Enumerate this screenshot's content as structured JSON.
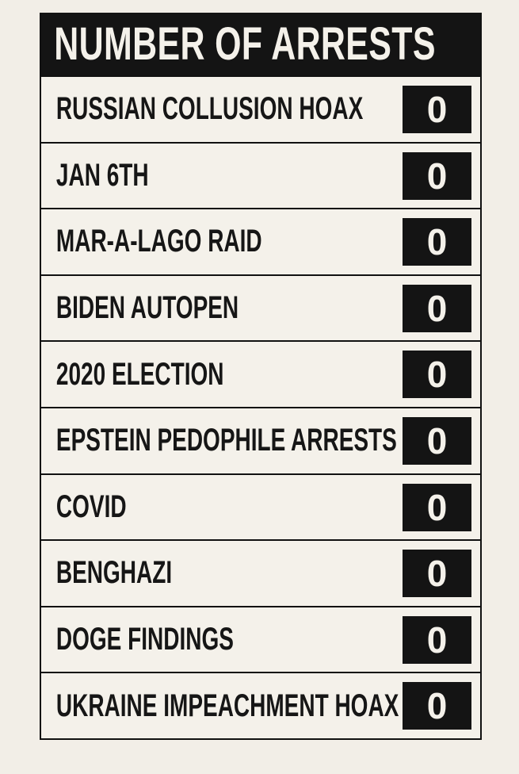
{
  "header": {
    "title": "NUMBER OF ARRESTS"
  },
  "table": {
    "rows": [
      {
        "label": "RUSSIAN COLLUSION HOAX",
        "value": 0
      },
      {
        "label": "JAN 6TH",
        "value": 0
      },
      {
        "label": "MAR-A-LAGO RAID",
        "value": 0
      },
      {
        "label": "BIDEN AUTOPEN",
        "value": 0
      },
      {
        "label": "2020 ELECTION",
        "value": 0
      },
      {
        "label": "EPSTEIN PEDOPHILE ARRESTS",
        "value": 0
      },
      {
        "label": "COVID",
        "value": 0
      },
      {
        "label": "BENGHAZI",
        "value": 0
      },
      {
        "label": "DOGE FINDINGS",
        "value": 0
      },
      {
        "label": "UKRAINE IMPEACHMENT HOAX",
        "value": 0
      }
    ]
  }
}
